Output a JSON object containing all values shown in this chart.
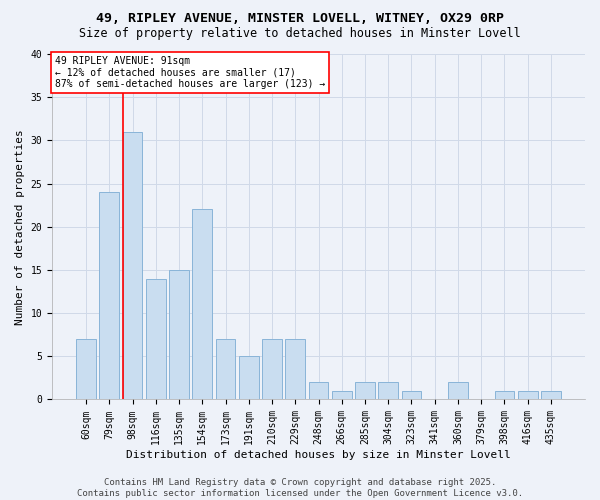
{
  "title1": "49, RIPLEY AVENUE, MINSTER LOVELL, WITNEY, OX29 0RP",
  "title2": "Size of property relative to detached houses in Minster Lovell",
  "xlabel": "Distribution of detached houses by size in Minster Lovell",
  "ylabel": "Number of detached properties",
  "categories": [
    "60sqm",
    "79sqm",
    "98sqm",
    "116sqm",
    "135sqm",
    "154sqm",
    "173sqm",
    "191sqm",
    "210sqm",
    "229sqm",
    "248sqm",
    "266sqm",
    "285sqm",
    "304sqm",
    "323sqm",
    "341sqm",
    "360sqm",
    "379sqm",
    "398sqm",
    "416sqm",
    "435sqm"
  ],
  "values": [
    7,
    24,
    31,
    14,
    15,
    22,
    7,
    5,
    7,
    7,
    2,
    1,
    2,
    2,
    1,
    0,
    2,
    0,
    1,
    1,
    1
  ],
  "bar_color": "#c9ddf0",
  "bar_edge_color": "#89b4d8",
  "vline_x_index": 1.575,
  "annotation_text": "49 RIPLEY AVENUE: 91sqm\n← 12% of detached houses are smaller (17)\n87% of semi-detached houses are larger (123) →",
  "annotation_box_color": "white",
  "annotation_box_edge": "red",
  "vline_color": "red",
  "grid_color": "#d0d9e8",
  "background_color": "#eef2f9",
  "footer": "Contains HM Land Registry data © Crown copyright and database right 2025.\nContains public sector information licensed under the Open Government Licence v3.0.",
  "ylim": [
    0,
    40
  ],
  "yticks": [
    0,
    5,
    10,
    15,
    20,
    25,
    30,
    35,
    40
  ],
  "title_fontsize": 9.5,
  "subtitle_fontsize": 8.5,
  "axis_label_fontsize": 8,
  "tick_fontsize": 7,
  "footer_fontsize": 6.5,
  "annotation_fontsize": 7
}
